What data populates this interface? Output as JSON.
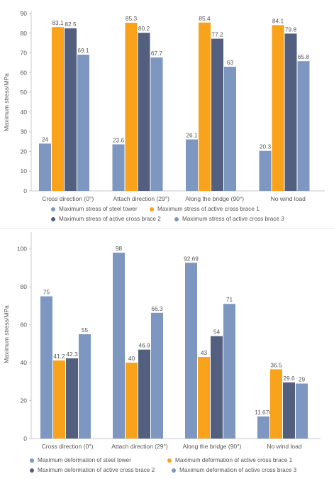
{
  "colors": {
    "steel_tower": "#7e97c0",
    "brace1": "#f9a21b",
    "brace2": "#525f7f",
    "brace3": "#7e97c0",
    "axis": "#c8c8c8",
    "text": "#555555"
  },
  "chart_data": [
    {
      "type": "bar",
      "ylabel": "Maximum stress/MPa",
      "ylim": [
        0,
        90
      ],
      "yticks": [
        0,
        10,
        20,
        30,
        40,
        50,
        60,
        70,
        80,
        90
      ],
      "categories": [
        "Cross direction (0°)",
        "Attach direction (29°)",
        "Along the bridge (90°)",
        "No wind load"
      ],
      "series": [
        {
          "name": "Maximum stress of steel tower",
          "values": [
            24,
            23.6,
            26.1,
            20.3
          ],
          "labels": [
            "24",
            "23.6",
            "26.1",
            "20.3"
          ]
        },
        {
          "name": "Maximum stress of active cross brace 1",
          "values": [
            83.1,
            85.3,
            85.4,
            84.1
          ],
          "labels": [
            "83.1",
            "85.3",
            "85.4",
            "84.1"
          ]
        },
        {
          "name": "Maximum stress of active cross brace 2",
          "values": [
            82.5,
            80.2,
            77.2,
            79.8
          ],
          "labels": [
            "82.5",
            "80.2",
            "77.2",
            "79.8"
          ]
        },
        {
          "name": "Maximum stress of active cross brace 3",
          "values": [
            69.1,
            67.7,
            63,
            65.8
          ],
          "labels": [
            "69.1",
            "67.7",
            "63",
            "65.8"
          ]
        }
      ],
      "legend_position": "bottom"
    },
    {
      "type": "bar",
      "ylabel": "Maximum stress/MPa",
      "ylim": [
        0,
        110
      ],
      "yticks": [
        0,
        20,
        40,
        60,
        80,
        100
      ],
      "categories": [
        "Cross direction (0°)",
        "Attach direction (29°)",
        "Along the bridge (90°)",
        "No wind load"
      ],
      "series": [
        {
          "name": "Maximum deformation of steel tower",
          "values": [
            75,
            98,
            92.69,
            11.676
          ],
          "labels": [
            "75",
            "98",
            "92.69",
            "11.676"
          ]
        },
        {
          "name": "Maximum deformation of active cross brace 1",
          "values": [
            41.2,
            40,
            43,
            36.5
          ],
          "labels": [
            "41.2",
            "40",
            "43",
            "36.5"
          ]
        },
        {
          "name": "Maximum deformation of active cross brace 2",
          "values": [
            42.3,
            46.9,
            54,
            29.6
          ],
          "labels": [
            "42.3",
            "46.9",
            "54",
            "29.6"
          ]
        },
        {
          "name": "Maximum deformation of active cross brace 3",
          "values": [
            55,
            66.3,
            71,
            29
          ],
          "labels": [
            "55",
            "66.3",
            "71",
            "29"
          ]
        }
      ],
      "legend_position": "bottom"
    }
  ]
}
